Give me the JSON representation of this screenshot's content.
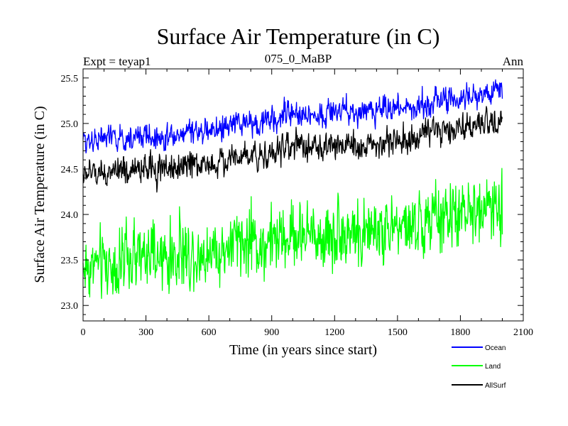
{
  "chart_data": {
    "type": "line",
    "title": "Surface Air Temperature (in C)",
    "left_label": "Expt = teyap1",
    "subtitle": "075_0_MaBP",
    "right_label": "Ann",
    "xlabel": "Time (in years since start)",
    "ylabel": "Surface Air Temperature (in C)",
    "xlim": [
      0,
      2100
    ],
    "ylim": [
      22.83,
      25.6
    ],
    "xticks": [
      0,
      300,
      600,
      900,
      1200,
      1500,
      1800,
      2100
    ],
    "yticks": [
      23.0,
      23.5,
      24.0,
      24.5,
      25.0,
      25.5
    ],
    "xtick_labels": [
      "0",
      "300",
      "600",
      "900",
      "1200",
      "1500",
      "1800",
      "2100"
    ],
    "ytick_labels": [
      "23.0",
      "23.5",
      "24.0",
      "24.5",
      "25.0",
      "25.5"
    ],
    "series": [
      {
        "name": "Ocean",
        "color": "#0000ff",
        "x_range": [
          0,
          2000
        ],
        "anchors": {
          "x": [
            0,
            300,
            600,
            900,
            1200,
            1500,
            1800,
            2000
          ],
          "y": [
            24.78,
            24.85,
            24.95,
            25.02,
            25.12,
            25.2,
            25.25,
            25.32
          ]
        },
        "noise_amplitude": 0.1,
        "spike_amplitude": 0.1
      },
      {
        "name": "Land",
        "color": "#00ff00",
        "x_range": [
          0,
          2000
        ],
        "anchors": {
          "x": [
            0,
            300,
            600,
            900,
            1200,
            1500,
            1800,
            2000
          ],
          "y": [
            23.38,
            23.5,
            23.62,
            23.68,
            23.78,
            23.88,
            23.97,
            24.02
          ]
        },
        "noise_amplitude": 0.26,
        "spike_amplitude": 0.35
      },
      {
        "name": "AllSurf",
        "color": "#000000",
        "x_range": [
          0,
          2000
        ],
        "anchors": {
          "x": [
            0,
            300,
            600,
            900,
            1200,
            1500,
            1800,
            2000
          ],
          "y": [
            24.4,
            24.5,
            24.6,
            24.67,
            24.75,
            24.83,
            24.92,
            24.97
          ]
        },
        "noise_amplitude": 0.11,
        "spike_amplitude": 0.12
      }
    ],
    "legend_position": "bottom-right"
  }
}
